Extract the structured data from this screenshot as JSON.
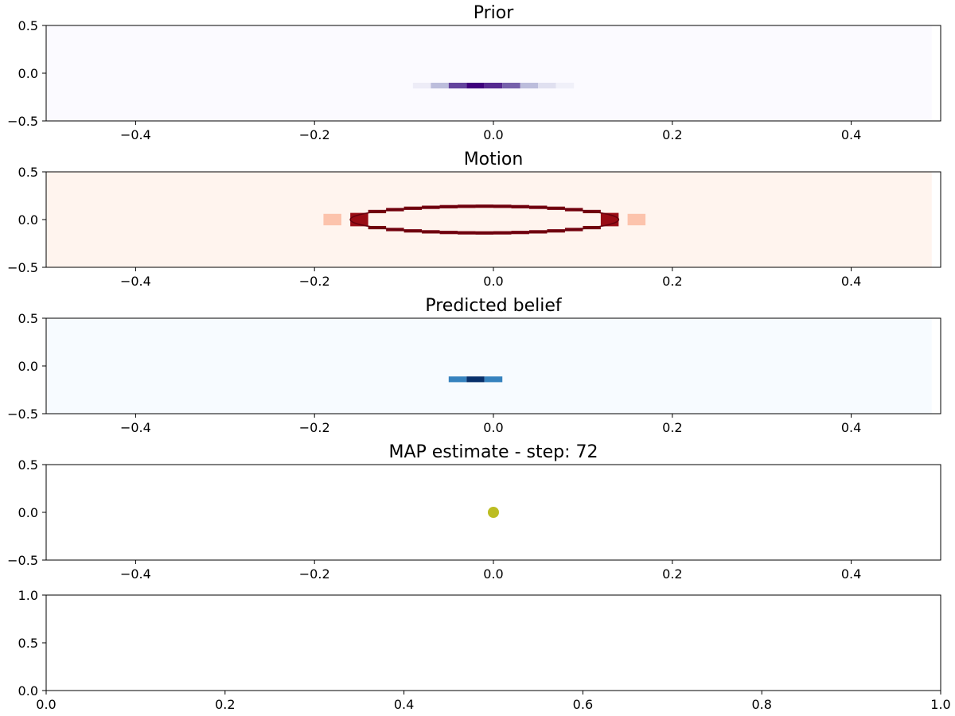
{
  "chart_data": [
    {
      "type": "heatmap",
      "title": "Prior",
      "xlim": [
        -0.5,
        0.5
      ],
      "ylim": [
        -0.5,
        0.5
      ],
      "xticks": [
        -0.4,
        -0.2,
        0.0,
        0.2,
        0.4
      ],
      "xtick_labels": [
        "−0.4",
        "−0.2",
        "0.0",
        "0.2",
        "0.4"
      ],
      "yticks": [
        0.5,
        0.0,
        -0.5
      ],
      "ytick_labels": [
        "0.5",
        "0.0",
        "−0.5"
      ],
      "colormap": "Purples",
      "colors": {
        "background": "#fbfaff",
        "light": "#bcbddc",
        "mid": "#6a51a3",
        "dark": "#3f007d"
      },
      "cells": [
        {
          "x0": -0.09,
          "x1": -0.07,
          "y": -0.13,
          "level": 0.08
        },
        {
          "x0": -0.07,
          "x1": -0.05,
          "y": -0.13,
          "level": 0.35
        },
        {
          "x0": -0.05,
          "x1": -0.03,
          "y": -0.13,
          "level": 0.75
        },
        {
          "x0": -0.03,
          "x1": -0.01,
          "y": -0.13,
          "level": 1.0
        },
        {
          "x0": -0.01,
          "x1": 0.01,
          "y": -0.13,
          "level": 0.85
        },
        {
          "x0": 0.01,
          "x1": 0.03,
          "y": -0.13,
          "level": 0.65
        },
        {
          "x0": 0.03,
          "x1": 0.05,
          "y": -0.13,
          "level": 0.35
        },
        {
          "x0": 0.05,
          "x1": 0.07,
          "y": -0.13,
          "level": 0.15
        },
        {
          "x0": 0.07,
          "x1": 0.09,
          "y": -0.13,
          "level": 0.06
        }
      ]
    },
    {
      "type": "heatmap",
      "title": "Motion",
      "xlim": [
        -0.5,
        0.5
      ],
      "ylim": [
        -0.5,
        0.5
      ],
      "xticks": [
        -0.4,
        -0.2,
        0.0,
        0.2,
        0.4
      ],
      "xtick_labels": [
        "−0.4",
        "−0.2",
        "0.0",
        "0.2",
        "0.4"
      ],
      "yticks": [
        0.5,
        0.0,
        -0.5
      ],
      "ytick_labels": [
        "0.5",
        "0.0",
        "−0.5"
      ],
      "colormap": "Reds",
      "colors": {
        "background": "#fff4ee",
        "light": "#fcbba1",
        "mid": "#cb181d",
        "dark": "#67000d"
      },
      "ellipse": {
        "center_x": -0.01,
        "center_y": 0.0,
        "radius_x": 0.15,
        "radius_y": 0.14
      }
    },
    {
      "type": "heatmap",
      "title": "Predicted belief",
      "xlim": [
        -0.5,
        0.5
      ],
      "ylim": [
        -0.5,
        0.5
      ],
      "xticks": [
        -0.4,
        -0.2,
        0.0,
        0.2,
        0.4
      ],
      "xtick_labels": [
        "−0.4",
        "−0.2",
        "0.0",
        "0.2",
        "0.4"
      ],
      "yticks": [
        0.5,
        0.0,
        -0.5
      ],
      "ytick_labels": [
        "0.5",
        "0.0",
        "−0.5"
      ],
      "colormap": "Blues",
      "colors": {
        "background": "#f7fbff",
        "light": "#6baed6",
        "mid": "#2171b5",
        "dark": "#08306b"
      },
      "cells": [
        {
          "x0": -0.05,
          "x1": -0.03,
          "y": -0.14,
          "level": 0.6
        },
        {
          "x0": -0.03,
          "x1": -0.01,
          "y": -0.14,
          "level": 1.0
        },
        {
          "x0": -0.01,
          "x1": 0.01,
          "y": -0.14,
          "level": 0.6
        }
      ]
    },
    {
      "type": "scatter",
      "title": "MAP estimate - step: 72",
      "xlim": [
        -0.5,
        0.5
      ],
      "ylim": [
        -0.5,
        0.5
      ],
      "xticks": [
        -0.4,
        -0.2,
        0.0,
        0.2,
        0.4
      ],
      "xtick_labels": [
        "−0.4",
        "−0.2",
        "0.0",
        "0.2",
        "0.4"
      ],
      "yticks": [
        0.5,
        0.0,
        -0.5
      ],
      "ytick_labels": [
        "0.5",
        "0.0",
        "−0.5"
      ],
      "points": [
        {
          "x": 0.0,
          "y": 0.0
        }
      ],
      "color": "#bcbd22"
    },
    {
      "type": "line",
      "title": "",
      "xlim": [
        0.0,
        1.0
      ],
      "ylim": [
        0.0,
        1.0
      ],
      "xticks": [
        0.0,
        0.2,
        0.4,
        0.6,
        0.8,
        1.0
      ],
      "xtick_labels": [
        "0.0",
        "0.2",
        "0.4",
        "0.6",
        "0.8",
        "1.0"
      ],
      "yticks": [
        1.0,
        0.5,
        0.0
      ],
      "ytick_labels": [
        "1.0",
        "0.5",
        "0.0"
      ],
      "series": []
    }
  ]
}
